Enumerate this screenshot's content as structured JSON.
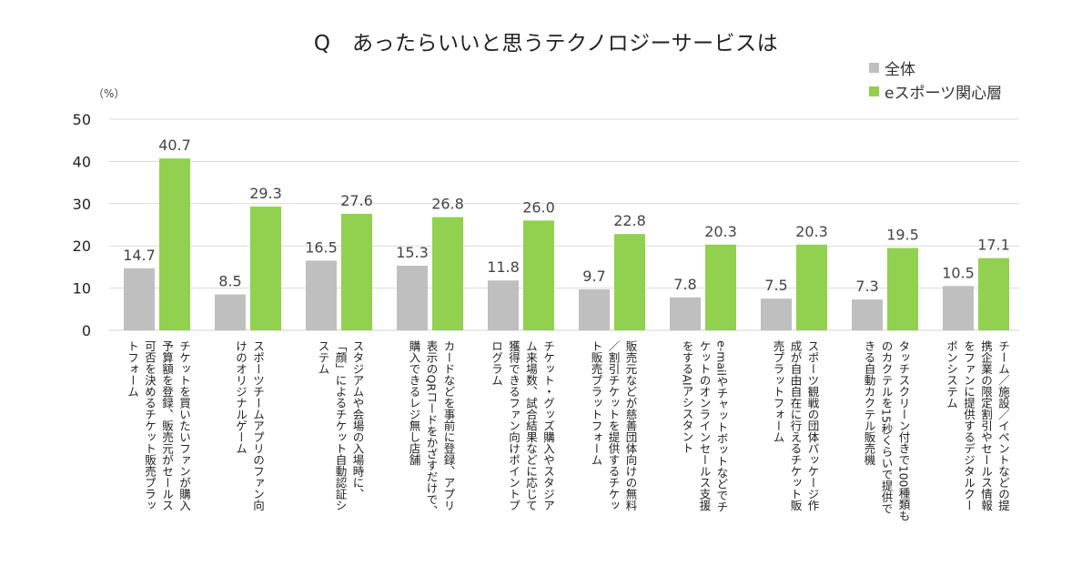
{
  "chart_data": {
    "type": "bar",
    "title": "Q　あったらいいと思うテクノロジーサービスは",
    "ylabel": "（%）",
    "xlabel": "",
    "ylim": [
      0,
      50
    ],
    "yticks": [
      0,
      10,
      20,
      30,
      40,
      50
    ],
    "grid": true,
    "legend_position": "top-right",
    "categories": [
      "チケットを買いたいファンが購入\n予算額を登録、販売元がセールス\n可否を決めるチケット販売プラッ\nトフォーム",
      "スポーツチームアプリのファン向\nけのオリジナルゲーム",
      "スタジアムや会場の入場時に、\n「顔」によるチケット自動認証シ\nステム",
      "カードなどを事前に登録、アプリ\n表示のQRコードをかざすだけで、\n購入できるレジ無し店舗",
      "チケット・グッズ購入やスタジア\nム来場数、試合結果などに応じて\n獲得できるファン向けポイントプ\nログラム",
      "販売元などが慈善団体向けの無料\n／割引チケットを提供するチケッ\nト販売プラットフォーム",
      "e-mailやチャットボットなどでチ\nケットのオンラインセールス支援\nをするAIアシスタント",
      "スポーツ観戦の団体パッケージ作\n成が自由自在に行えるチケット販\n売プラットフォーム",
      "タッチスクリーン付きで100種類も\nのカクテルを15秒くらいで提供で\nきる自動カクテル販売機",
      "チーム／施設／イベントなどの提\n携企業の限定割引やセールス情報\nをファンに提供するデジタルクー\nポンシステム"
    ],
    "series": [
      {
        "name": "全体",
        "color": "#bfbfbf",
        "values": [
          14.7,
          8.5,
          16.5,
          15.3,
          11.8,
          9.7,
          7.8,
          7.5,
          7.3,
          10.5
        ],
        "labels": [
          "14.7",
          "8.5",
          "16.5",
          "15.3",
          "11.8",
          "9.7",
          "7.8",
          "7.5",
          "7.3",
          "10.5"
        ]
      },
      {
        "name": "eスポーツ関心層",
        "color": "#92d050",
        "values": [
          40.7,
          29.3,
          27.6,
          26.8,
          26.0,
          22.8,
          20.3,
          20.3,
          19.5,
          17.1
        ],
        "labels": [
          "40.7",
          "29.3",
          "27.6",
          "26.8",
          "26.0",
          "22.8",
          "20.3",
          "20.3",
          "19.5",
          "17.1"
        ]
      }
    ]
  }
}
